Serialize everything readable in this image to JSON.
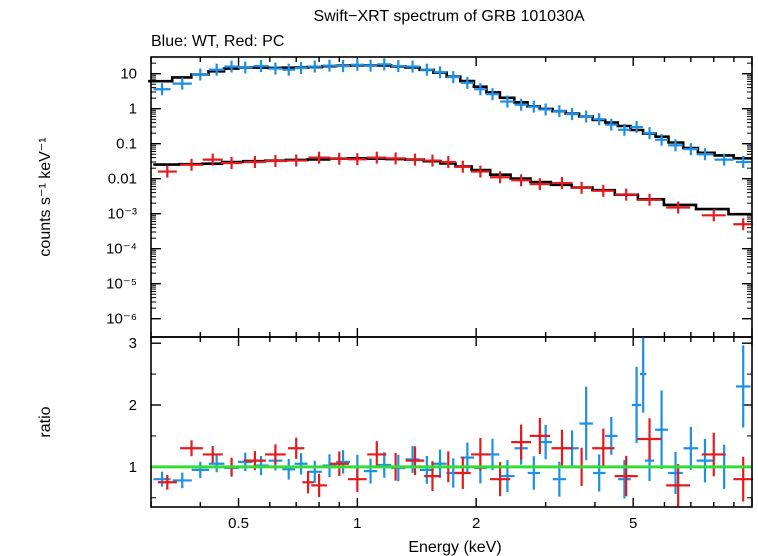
{
  "chart_data": {
    "type": "scatter",
    "title": "Swift−XRT spectrum of GRB 101030A",
    "subtitle": "Blue: WT, Red: PC",
    "xlabel": "Energy (keV)",
    "x_scale": "log",
    "xlim": [
      0.3,
      10
    ],
    "x_ticks": [
      0.5,
      1,
      2,
      5
    ],
    "x_tick_labels": [
      "0.5",
      "1",
      "2",
      "5"
    ],
    "panels": [
      {
        "name": "spectrum",
        "ylabel": "counts s⁻¹ keV⁻¹",
        "y_scale": "log",
        "ylim": [
          3e-07,
          30
        ],
        "y_ticks": [
          10,
          1,
          0.1,
          0.01,
          0.001,
          0.0001,
          1e-05,
          1e-06
        ],
        "y_tick_labels": [
          "10",
          "1",
          "0.1",
          "0.01",
          "10⁻³",
          "10⁻⁴",
          "10⁻⁵",
          "10⁻⁶"
        ],
        "series": [
          {
            "color": "#1e8fe6",
            "points": [
              [
                0.32,
                3.6
              ],
              [
                0.36,
                5.2
              ],
              [
                0.4,
                9.5
              ],
              [
                0.44,
                13
              ],
              [
                0.48,
                16
              ],
              [
                0.52,
                15
              ],
              [
                0.57,
                16.5
              ],
              [
                0.62,
                14
              ],
              [
                0.67,
                13
              ],
              [
                0.72,
                14.5
              ],
              [
                0.78,
                16
              ],
              [
                0.85,
                17
              ],
              [
                0.92,
                16.5
              ],
              [
                1.0,
                18
              ],
              [
                1.08,
                17
              ],
              [
                1.17,
                18.5
              ],
              [
                1.27,
                16.5
              ],
              [
                1.38,
                16
              ],
              [
                1.5,
                13
              ],
              [
                1.62,
                11
              ],
              [
                1.75,
                8
              ],
              [
                1.9,
                5.5
              ],
              [
                2.05,
                3.6
              ],
              [
                2.2,
                2.6
              ],
              [
                2.4,
                1.6
              ],
              [
                2.6,
                1.3
              ],
              [
                2.8,
                1.15
              ],
              [
                3.0,
                0.95
              ],
              [
                3.25,
                0.85
              ],
              [
                3.5,
                0.7
              ],
              [
                3.8,
                0.6
              ],
              [
                4.1,
                0.5
              ],
              [
                4.4,
                0.35
              ],
              [
                4.75,
                0.25
              ],
              [
                5.1,
                0.3
              ],
              [
                5.5,
                0.2
              ],
              [
                5.9,
                0.13
              ],
              [
                6.4,
                0.09
              ],
              [
                7.0,
                0.07
              ],
              [
                7.6,
                0.05
              ],
              [
                8.5,
                0.035
              ],
              [
                9.5,
                0.03
              ]
            ]
          },
          {
            "color": "#e41a1c",
            "points": [
              [
                0.33,
                0.016
              ],
              [
                0.38,
                0.025
              ],
              [
                0.43,
                0.035
              ],
              [
                0.48,
                0.028
              ],
              [
                0.55,
                0.03
              ],
              [
                0.62,
                0.032
              ],
              [
                0.7,
                0.033
              ],
              [
                0.8,
                0.04
              ],
              [
                0.9,
                0.037
              ],
              [
                1.0,
                0.036
              ],
              [
                1.12,
                0.04
              ],
              [
                1.25,
                0.038
              ],
              [
                1.4,
                0.035
              ],
              [
                1.55,
                0.033
              ],
              [
                1.7,
                0.03
              ],
              [
                1.85,
                0.022
              ],
              [
                2.05,
                0.016
              ],
              [
                2.3,
                0.011
              ],
              [
                2.6,
                0.009
              ],
              [
                2.9,
                0.007
              ],
              [
                3.3,
                0.0075
              ],
              [
                3.7,
                0.0055
              ],
              [
                4.2,
                0.0045
              ],
              [
                4.8,
                0.0035
              ],
              [
                5.5,
                0.0025
              ],
              [
                6.5,
                0.0015
              ],
              [
                8.0,
                0.0009
              ],
              [
                9.5,
                0.0005
              ]
            ]
          }
        ],
        "model_color": "#000000"
      },
      {
        "name": "ratio",
        "ylabel": "ratio",
        "ylim": [
          0.35,
          3.1
        ],
        "y_ticks": [
          1,
          2,
          3
        ],
        "y_tick_labels": [
          "1",
          "2",
          "3"
        ],
        "reference_line": {
          "y": 1,
          "color": "#33dd33"
        },
        "series": [
          {
            "color": "#1e8fe6",
            "points": [
              [
                0.32,
                0.8
              ],
              [
                0.36,
                0.78
              ],
              [
                0.4,
                0.95
              ],
              [
                0.44,
                1.05
              ],
              [
                0.48,
                0.98
              ],
              [
                0.52,
                1.08
              ],
              [
                0.57,
                1.02
              ],
              [
                0.62,
                1.1
              ],
              [
                0.67,
                0.96
              ],
              [
                0.72,
                1.05
              ],
              [
                0.78,
                0.92
              ],
              [
                0.85,
                1.02
              ],
              [
                0.92,
                1.08
              ],
              [
                1.0,
                1.0
              ],
              [
                1.08,
                0.93
              ],
              [
                1.17,
                1.03
              ],
              [
                1.27,
                0.98
              ],
              [
                1.38,
                1.12
              ],
              [
                1.5,
                0.95
              ],
              [
                1.62,
                1.05
              ],
              [
                1.75,
                0.9
              ],
              [
                1.9,
                1.15
              ],
              [
                2.05,
                0.98
              ],
              [
                2.2,
                1.2
              ],
              [
                2.4,
                0.85
              ],
              [
                2.6,
                1.3
              ],
              [
                2.8,
                0.9
              ],
              [
                3.0,
                1.4
              ],
              [
                3.25,
                0.8
              ],
              [
                3.5,
                1.3
              ],
              [
                3.8,
                1.7
              ],
              [
                4.1,
                0.9
              ],
              [
                4.4,
                1.5
              ],
              [
                4.75,
                0.8
              ],
              [
                5.1,
                2.0
              ],
              [
                5.3,
                2.5
              ],
              [
                5.5,
                1.1
              ],
              [
                5.9,
                1.6
              ],
              [
                6.4,
                0.9
              ],
              [
                7.0,
                1.3
              ],
              [
                7.6,
                1.1
              ],
              [
                8.5,
                1.0
              ],
              [
                9.5,
                2.3
              ]
            ]
          },
          {
            "color": "#e41a1c",
            "points": [
              [
                0.33,
                0.75
              ],
              [
                0.38,
                1.3
              ],
              [
                0.43,
                1.2
              ],
              [
                0.48,
                1.0
              ],
              [
                0.55,
                1.1
              ],
              [
                0.62,
                1.2
              ],
              [
                0.7,
                1.3
              ],
              [
                0.75,
                0.75
              ],
              [
                0.8,
                0.7
              ],
              [
                0.9,
                1.05
              ],
              [
                1.0,
                0.8
              ],
              [
                1.12,
                1.2
              ],
              [
                1.25,
                1.0
              ],
              [
                1.4,
                1.1
              ],
              [
                1.55,
                0.85
              ],
              [
                1.7,
                1.0
              ],
              [
                1.85,
                0.9
              ],
              [
                2.05,
                1.2
              ],
              [
                2.3,
                0.8
              ],
              [
                2.6,
                1.4
              ],
              [
                2.9,
                1.5
              ],
              [
                3.3,
                1.3
              ],
              [
                3.7,
                1.0
              ],
              [
                4.2,
                1.3
              ],
              [
                4.8,
                0.85
              ],
              [
                5.5,
                1.45
              ],
              [
                6.5,
                0.7
              ],
              [
                8.0,
                1.2
              ],
              [
                9.5,
                0.8
              ]
            ]
          }
        ]
      }
    ]
  }
}
